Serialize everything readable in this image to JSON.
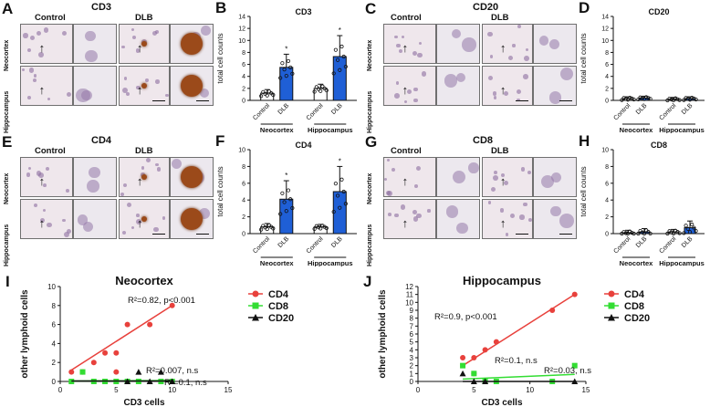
{
  "panels": {
    "A": {
      "letter": "A",
      "title": "CD3",
      "control_label": "Control",
      "dlb_label": "DLB",
      "row1": "Neocortex",
      "row2": "Hippocampus"
    },
    "C": {
      "letter": "C",
      "title": "CD20",
      "control_label": "Control",
      "dlb_label": "DLB",
      "row1": "Neocortex",
      "row2": "Hippocampus"
    },
    "E": {
      "letter": "E",
      "title": "CD4",
      "control_label": "Control",
      "dlb_label": "DLB",
      "row1": "Neocortex",
      "row2": "Hippocampus"
    },
    "G": {
      "letter": "G",
      "title": "CD8",
      "control_label": "Control",
      "dlb_label": "DLB",
      "row1": "Neocortex",
      "row2": "Hippocampus"
    }
  },
  "chart_data": [
    {
      "id": "B",
      "letter": "B",
      "type": "bar",
      "title": "CD3",
      "ylabel": "total cell counts",
      "ylim": [
        0,
        14
      ],
      "yticks": [
        0,
        2,
        4,
        6,
        8,
        10,
        12,
        14
      ],
      "groups": [
        "Neocortex",
        "Hippocampus"
      ],
      "categories": [
        "Control",
        "DLB",
        "Control",
        "DLB"
      ],
      "values": [
        1.2,
        5.5,
        2.0,
        7.3
      ],
      "errors": [
        0.6,
        2.2,
        0.7,
        3.5
      ],
      "stars": [
        "",
        "*",
        "",
        "*"
      ],
      "bar_colors": [
        "#ffffff",
        "#1f5fd6",
        "#ffffff",
        "#1f5fd6"
      ]
    },
    {
      "id": "D",
      "letter": "D",
      "type": "bar",
      "title": "CD20",
      "ylabel": "total cell counts",
      "ylim": [
        0,
        14
      ],
      "yticks": [
        0,
        2,
        4,
        6,
        8,
        10,
        12,
        14
      ],
      "groups": [
        "Neocortex",
        "Hippocampus"
      ],
      "categories": [
        "Control",
        "DLB",
        "Control",
        "DLB"
      ],
      "values": [
        0.3,
        0.4,
        0.2,
        0.3
      ],
      "errors": [
        0.3,
        0.3,
        0.3,
        0.3
      ],
      "stars": [
        "",
        "",
        "",
        ""
      ],
      "bar_colors": [
        "#ffffff",
        "#1f5fd6",
        "#ffffff",
        "#1f5fd6"
      ]
    },
    {
      "id": "F",
      "letter": "F",
      "type": "bar",
      "title": "CD4",
      "ylabel": "total cell counts",
      "ylim": [
        0,
        10
      ],
      "yticks": [
        0,
        2,
        4,
        6,
        8,
        10
      ],
      "groups": [
        "Neocortex",
        "Hippocampus"
      ],
      "categories": [
        "Control",
        "DLB",
        "Control",
        "DLB"
      ],
      "values": [
        0.8,
        4.1,
        0.8,
        5.0
      ],
      "errors": [
        0.4,
        2.2,
        0.3,
        3.0
      ],
      "stars": [
        "",
        "*",
        "",
        "*"
      ],
      "bar_colors": [
        "#ffffff",
        "#1f5fd6",
        "#ffffff",
        "#1f5fd6"
      ]
    },
    {
      "id": "H",
      "letter": "H",
      "type": "bar",
      "title": "CD8",
      "ylabel": "total cell counts",
      "ylim": [
        0,
        10
      ],
      "yticks": [
        0,
        2,
        4,
        6,
        8,
        10
      ],
      "groups": [
        "Neocortex",
        "Hippocampus"
      ],
      "categories": [
        "Control",
        "DLB",
        "Control",
        "DLB"
      ],
      "values": [
        0.1,
        0.2,
        0.2,
        0.7
      ],
      "errors": [
        0.3,
        0.4,
        0.3,
        0.8
      ],
      "stars": [
        "",
        "",
        "",
        ""
      ],
      "bar_colors": [
        "#ffffff",
        "#1f5fd6",
        "#ffffff",
        "#1f5fd6"
      ]
    },
    {
      "id": "I",
      "letter": "I",
      "type": "scatter",
      "title": "Neocortex",
      "xlabel": "CD3 cells",
      "ylabel": "other lymphoid cells",
      "xlim": [
        0,
        15
      ],
      "ylim": [
        0,
        10
      ],
      "xticks": [
        0,
        5,
        10,
        15
      ],
      "yticks": [
        0,
        2,
        4,
        6,
        8,
        10
      ],
      "series": [
        {
          "name": "CD4",
          "color": "#e8413c",
          "marker": "circle",
          "fit": [
            [
              1,
              1.2
            ],
            [
              10,
              8
            ]
          ],
          "x": [
            1,
            2,
            3,
            4,
            5,
            5,
            6,
            8,
            10
          ],
          "y": [
            1,
            1,
            2,
            3,
            3,
            1,
            6,
            6,
            8
          ],
          "stat": "R²=0.82, p<0.001"
        },
        {
          "name": "CD8",
          "color": "#33dd33",
          "marker": "square",
          "fit": [
            [
              1,
              0.05
            ],
            [
              10,
              0.1
            ]
          ],
          "x": [
            1,
            2,
            3,
            4,
            5,
            6,
            7,
            9,
            10
          ],
          "y": [
            0,
            1,
            0,
            0,
            0,
            0,
            0,
            0,
            0
          ],
          "stat": "R²=0.007, n.s"
        },
        {
          "name": "CD20",
          "color": "#111111",
          "marker": "triangle",
          "fit": [
            [
              1,
              0.05
            ],
            [
              10,
              0.05
            ]
          ],
          "x": [
            6,
            7,
            8,
            9,
            10
          ],
          "y": [
            0,
            1,
            0,
            1,
            0
          ],
          "stat": "R²=0.1, n.s"
        }
      ]
    },
    {
      "id": "J",
      "letter": "J",
      "type": "scatter",
      "title": "Hippocampus",
      "xlabel": "CD3 cells",
      "ylabel": "other lymphoid cells",
      "xlim": [
        0,
        15
      ],
      "ylim": [
        0,
        12
      ],
      "xticks": [
        0,
        5,
        10,
        15
      ],
      "yticks": [
        0,
        1,
        2,
        3,
        4,
        5,
        6,
        7,
        8,
        9,
        10,
        11,
        12
      ],
      "series": [
        {
          "name": "CD4",
          "color": "#e8413c",
          "marker": "circle",
          "fit": [
            [
              4,
              2
            ],
            [
              14,
              11
            ]
          ],
          "x": [
            4,
            5,
            5,
            6,
            7,
            12,
            14
          ],
          "y": [
            3,
            3,
            1,
            4,
            5,
            9,
            11
          ],
          "stat": "R²=0.9, p<0.001"
        },
        {
          "name": "CD8",
          "color": "#33dd33",
          "marker": "square",
          "fit": [
            [
              4,
              0.3
            ],
            [
              14,
              0.9
            ]
          ],
          "x": [
            4,
            5,
            6,
            7,
            12,
            14
          ],
          "y": [
            2,
            1,
            0,
            0,
            0,
            2
          ],
          "stat": "R²=0.1, n.s"
        },
        {
          "name": "CD20",
          "color": "#111111",
          "marker": "triangle",
          "fit": [
            [
              4,
              0
            ],
            [
              14,
              0
            ]
          ],
          "x": [
            4,
            5,
            6,
            14
          ],
          "y": [
            1,
            0,
            0,
            0
          ],
          "stat": "R²=0.03, n.s"
        }
      ]
    }
  ]
}
